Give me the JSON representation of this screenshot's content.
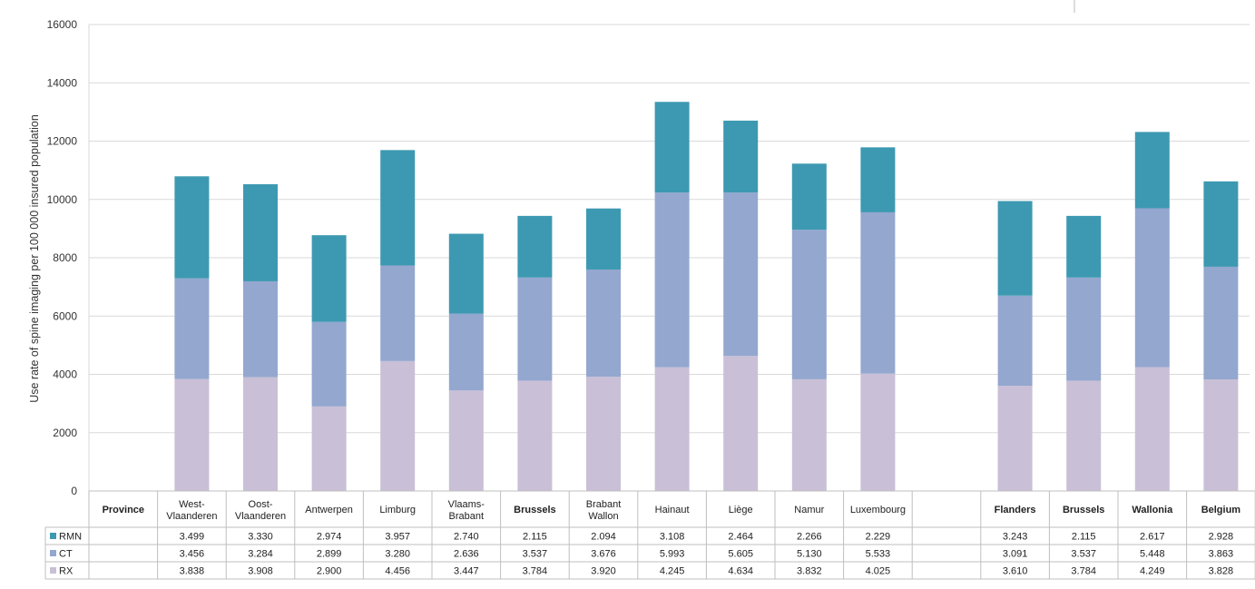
{
  "chart_data": {
    "type": "bar",
    "stacked": true,
    "ylabel": "Use rate of spine imaging per 100 000 insured population",
    "ylim": [
      0,
      16000
    ],
    "yticks": [
      "0",
      "2000",
      "4000",
      "6000",
      "8000",
      "10000",
      "12000",
      "14000",
      "16000"
    ],
    "grid": true,
    "legend_placement": "left of data table",
    "table_header": "Province",
    "categories": [
      {
        "label": [
          "West-",
          "Vlaanderen"
        ],
        "bold": false
      },
      {
        "label": [
          "Oost-",
          "Vlaanderen"
        ],
        "bold": false
      },
      {
        "label": [
          "Antwerpen"
        ],
        "bold": false
      },
      {
        "label": [
          "Limburg"
        ],
        "bold": false
      },
      {
        "label": [
          "Vlaams-",
          "Brabant"
        ],
        "bold": false
      },
      {
        "label": [
          "Brussels"
        ],
        "bold": true
      },
      {
        "label": [
          "Brabant",
          "Wallon"
        ],
        "bold": false
      },
      {
        "label": [
          "Hainaut"
        ],
        "bold": false
      },
      {
        "label": [
          "Liège"
        ],
        "bold": false
      },
      {
        "label": [
          "Namur"
        ],
        "bold": false
      },
      {
        "label": [
          "Luxembourg"
        ],
        "bold": false
      },
      {
        "label": [
          ""
        ],
        "bold": false
      },
      {
        "label": [
          "Flanders"
        ],
        "bold": true
      },
      {
        "label": [
          "Brussels"
        ],
        "bold": true
      },
      {
        "label": [
          "Wallonia"
        ],
        "bold": true
      },
      {
        "label": [
          "Belgium"
        ],
        "bold": true
      }
    ],
    "series": [
      {
        "name": "RX",
        "color": "#c9bfd6",
        "values": [
          3838,
          3908,
          2900,
          4456,
          3447,
          3784,
          3920,
          4245,
          4634,
          3832,
          4025,
          null,
          3610,
          3784,
          4249,
          3828
        ],
        "labels": [
          "3.838",
          "3.908",
          "2.900",
          "4.456",
          "3.447",
          "3.784",
          "3.920",
          "4.245",
          "4.634",
          "3.832",
          "4.025",
          "",
          "3.610",
          "3.784",
          "4.249",
          "3.828"
        ]
      },
      {
        "name": "CT",
        "color": "#93a7cf",
        "values": [
          3456,
          3284,
          2899,
          3280,
          2636,
          3537,
          3676,
          5993,
          5605,
          5130,
          5533,
          null,
          3091,
          3537,
          5448,
          3863
        ],
        "labels": [
          "3.456",
          "3.284",
          "2.899",
          "3.280",
          "2.636",
          "3.537",
          "3.676",
          "5.993",
          "5.605",
          "5.130",
          "5.533",
          "",
          "3.091",
          "3.537",
          "5.448",
          "3.863"
        ]
      },
      {
        "name": "RMN",
        "color": "#3d99b1",
        "values": [
          3499,
          3330,
          2974,
          3957,
          2740,
          2115,
          2094,
          3108,
          2464,
          2266,
          2229,
          null,
          3243,
          2115,
          2617,
          2928
        ],
        "labels": [
          "3.499",
          "3.330",
          "2.974",
          "3.957",
          "2.740",
          "2.115",
          "2.094",
          "3.108",
          "2.464",
          "2.266",
          "2.229",
          "",
          "3.243",
          "2.115",
          "2.617",
          "2.928"
        ]
      }
    ],
    "table_row_order": [
      "RMN",
      "CT",
      "RX"
    ]
  }
}
